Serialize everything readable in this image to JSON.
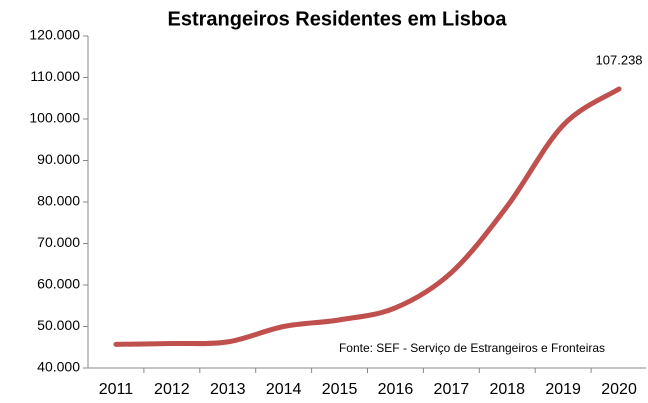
{
  "chart_data": {
    "type": "line",
    "title": "Estrangeiros Residentes em Lisboa",
    "annotation": "Fonte: SEF - Serviço de Estrangeiros e Fronteiras",
    "categories": [
      "2011",
      "2012",
      "2013",
      "2014",
      "2015",
      "2016",
      "2017",
      "2018",
      "2019",
      "2020"
    ],
    "series": [
      {
        "color": "#c0504d",
        "values": [
          45700,
          45900,
          46300,
          50000,
          51600,
          54500,
          63000,
          79000,
          98500,
          107238
        ],
        "value_labels": [
          null,
          null,
          null,
          null,
          null,
          null,
          null,
          null,
          null,
          "107.238"
        ]
      }
    ],
    "ylim": [
      40000,
      120000
    ],
    "yticks": [
      {
        "value": 40000,
        "label": "40.000"
      },
      {
        "value": 50000,
        "label": "50.000"
      },
      {
        "value": 60000,
        "label": "60.000"
      },
      {
        "value": 70000,
        "label": "70.000"
      },
      {
        "value": 80000,
        "label": "80.000"
      },
      {
        "value": 90000,
        "label": "90.000"
      },
      {
        "value": 100000,
        "label": "100.000"
      },
      {
        "value": 110000,
        "label": "110.000"
      },
      {
        "value": 120000,
        "label": "120.000"
      }
    ]
  }
}
